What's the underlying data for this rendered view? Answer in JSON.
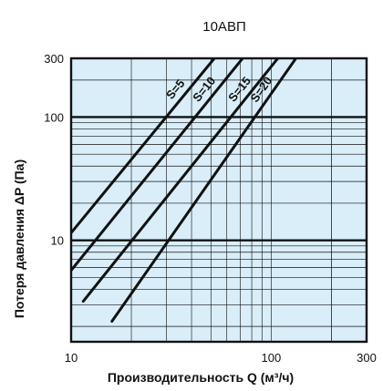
{
  "chart_data": {
    "type": "line",
    "title": "10АВП",
    "xlabel": "Производительность Q (м³/ч)",
    "ylabel": "Потеря давления  ΔP (Па)",
    "x_scale": "log",
    "y_scale": "log",
    "xlim": [
      10,
      300
    ],
    "ylim": [
      1.5,
      300
    ],
    "x_ticks": [
      "10",
      "100",
      "300"
    ],
    "y_ticks": [
      "10",
      "100",
      "300"
    ],
    "grid": true,
    "background_color": "#d9eef9",
    "series": [
      {
        "name": "S=5",
        "x": [
          10,
          52
        ],
        "y": [
          11.5,
          300
        ]
      },
      {
        "name": "S=10",
        "x": [
          10,
          72
        ],
        "y": [
          5.7,
          300
        ]
      },
      {
        "name": "S=15",
        "x": [
          11.5,
          108
        ],
        "y": [
          3.2,
          300
        ]
      },
      {
        "name": "S=20",
        "x": [
          16,
          133
        ],
        "y": [
          2.2,
          300
        ]
      }
    ]
  }
}
